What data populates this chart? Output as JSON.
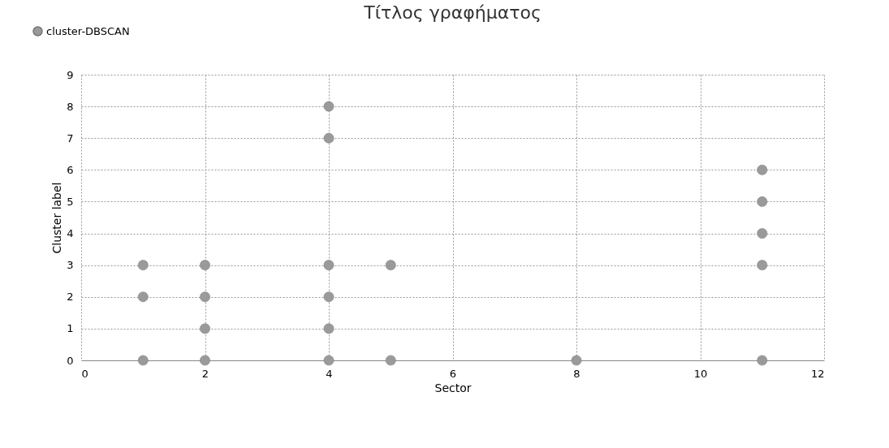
{
  "chart_data": {
    "type": "scatter",
    "title": "Τίτλος γραφήματος",
    "xlabel": "Sector",
    "ylabel": "Cluster label",
    "series": [
      {
        "name": "cluster-DBSCAN",
        "color": "#9a9a9a",
        "x": [
          1,
          1,
          1,
          2,
          2,
          2,
          2,
          4,
          4,
          4,
          4,
          4,
          4,
          5,
          5,
          8,
          11,
          11,
          11,
          11,
          11
        ],
        "values": [
          3,
          2,
          0,
          3,
          2,
          1,
          0,
          8,
          7,
          3,
          2,
          1,
          0,
          3,
          0,
          0,
          6,
          5,
          4,
          3,
          0
        ]
      }
    ],
    "xlim": [
      0,
      12
    ],
    "xticks": [
      0,
      2,
      4,
      6,
      8,
      10,
      12
    ],
    "ylim": [
      0,
      9
    ],
    "yticks": [
      0,
      1,
      2,
      3,
      4,
      5,
      6,
      7,
      8,
      9
    ],
    "grid": true,
    "legend": "top left",
    "marker": "circle"
  }
}
